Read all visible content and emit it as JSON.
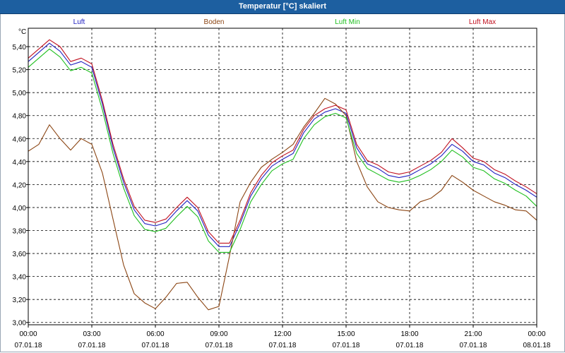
{
  "window": {
    "title": "Temperatur [°C] skaliert"
  },
  "chart_data": {
    "type": "line",
    "title": "Temperatur [°C] skaliert",
    "ylabel": "°C",
    "xlabel": "",
    "ylim": [
      2.98,
      5.56
    ],
    "xlim": [
      0,
      24
    ],
    "grid": true,
    "legend_placement": "top",
    "y_ticks": [
      "3,00",
      "3,20",
      "3,40",
      "3,60",
      "3,80",
      "4,00",
      "4,20",
      "4,40",
      "4,60",
      "4,80",
      "5,00",
      "5,20",
      "5,40"
    ],
    "y_tick_values": [
      3.0,
      3.2,
      3.4,
      3.6,
      3.8,
      4.0,
      4.2,
      4.4,
      4.6,
      4.8,
      5.0,
      5.2,
      5.4
    ],
    "x_ticks": [
      {
        "time": "00:00",
        "date": "07.01.18"
      },
      {
        "time": "03:00",
        "date": "07.01.18"
      },
      {
        "time": "06:00",
        "date": "07.01.18"
      },
      {
        "time": "09:00",
        "date": "07.01.18"
      },
      {
        "time": "12:00",
        "date": "07.01.18"
      },
      {
        "time": "15:00",
        "date": "07.01.18"
      },
      {
        "time": "18:00",
        "date": "07.01.18"
      },
      {
        "time": "21:00",
        "date": "07.01.18"
      },
      {
        "time": "00:00",
        "date": "08.01.18"
      }
    ],
    "x": [
      0,
      0.5,
      1,
      1.5,
      2,
      2.5,
      3,
      3.5,
      4,
      4.5,
      5,
      5.5,
      6,
      6.5,
      7,
      7.5,
      8,
      8.5,
      9,
      9.5,
      10,
      10.5,
      11,
      11.5,
      12,
      12.5,
      13,
      13.5,
      14,
      14.5,
      15,
      15.5,
      16,
      16.5,
      17,
      17.5,
      18,
      18.5,
      19,
      19.5,
      20,
      20.5,
      21,
      21.5,
      22,
      22.5,
      23,
      23.5,
      24
    ],
    "series": [
      {
        "name": "Luft",
        "color": "#2020c0",
        "values": [
          5.27,
          5.35,
          5.43,
          5.36,
          5.24,
          5.27,
          5.22,
          4.9,
          4.52,
          4.22,
          3.98,
          3.86,
          3.84,
          3.87,
          3.97,
          4.06,
          3.97,
          3.76,
          3.66,
          3.66,
          3.86,
          4.1,
          4.25,
          4.36,
          4.42,
          4.47,
          4.65,
          4.77,
          4.83,
          4.86,
          4.82,
          4.52,
          4.38,
          4.34,
          4.28,
          4.26,
          4.28,
          4.33,
          4.38,
          4.45,
          4.55,
          4.49,
          4.4,
          4.37,
          4.3,
          4.26,
          4.2,
          4.15,
          4.09
        ]
      },
      {
        "name": "Boden",
        "color": "#8b4513",
        "values": [
          4.49,
          4.55,
          4.72,
          4.6,
          4.5,
          4.6,
          4.55,
          4.3,
          3.9,
          3.5,
          3.25,
          3.17,
          3.12,
          3.22,
          3.34,
          3.35,
          3.22,
          3.11,
          3.14,
          3.58,
          4.05,
          4.22,
          4.35,
          4.42,
          4.48,
          4.55,
          4.7,
          4.82,
          4.95,
          4.9,
          4.8,
          4.4,
          4.18,
          4.05,
          4.0,
          3.98,
          3.97,
          4.05,
          4.08,
          4.15,
          4.28,
          4.22,
          4.15,
          4.1,
          4.05,
          4.02,
          3.98,
          3.97,
          3.89
        ]
      },
      {
        "name": "Luft Min",
        "color": "#1fbf1f",
        "values": [
          5.22,
          5.3,
          5.38,
          5.31,
          5.19,
          5.22,
          5.17,
          4.85,
          4.47,
          4.17,
          3.93,
          3.81,
          3.79,
          3.82,
          3.92,
          4.01,
          3.92,
          3.71,
          3.61,
          3.61,
          3.81,
          4.05,
          4.2,
          4.32,
          4.38,
          4.42,
          4.6,
          4.72,
          4.79,
          4.82,
          4.78,
          4.47,
          4.34,
          4.29,
          4.24,
          4.22,
          4.24,
          4.28,
          4.33,
          4.4,
          4.5,
          4.44,
          4.35,
          4.32,
          4.25,
          4.21,
          4.15,
          4.1,
          4.01
        ]
      },
      {
        "name": "Luft Max",
        "color": "#c0101f",
        "values": [
          5.3,
          5.38,
          5.46,
          5.4,
          5.27,
          5.3,
          5.25,
          4.93,
          4.55,
          4.25,
          4.01,
          3.89,
          3.87,
          3.9,
          4.0,
          4.09,
          4.0,
          3.79,
          3.69,
          3.69,
          3.89,
          4.13,
          4.28,
          4.39,
          4.45,
          4.5,
          4.68,
          4.8,
          4.86,
          4.89,
          4.85,
          4.55,
          4.41,
          4.37,
          4.31,
          4.29,
          4.31,
          4.36,
          4.41,
          4.48,
          4.6,
          4.52,
          4.43,
          4.4,
          4.33,
          4.29,
          4.23,
          4.18,
          4.12
        ]
      }
    ]
  }
}
